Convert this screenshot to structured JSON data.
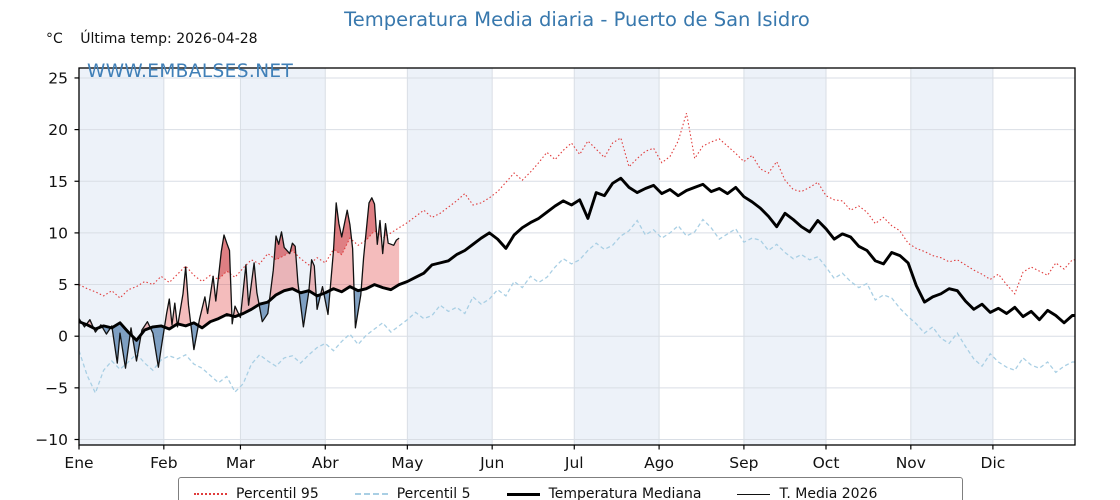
{
  "chart_data": {
    "type": "line",
    "title": "Temperatura Media diaria - Puerto de San Isidro",
    "unit_label": "°C",
    "last_temp_label": "Última temp: 2026-04-28",
    "watermark": "WWW.EMBALSES.NET",
    "months": [
      "Ene",
      "Feb",
      "Mar",
      "Abr",
      "May",
      "Jun",
      "Jul",
      "Ago",
      "Sep",
      "Oct",
      "Nov",
      "Dic"
    ],
    "month_start_days": [
      1,
      32,
      60,
      91,
      121,
      152,
      182,
      213,
      244,
      274,
      305,
      335
    ],
    "days_in_year": 365,
    "yticks": [
      25,
      20,
      15,
      10,
      5,
      0,
      -5,
      -10
    ],
    "ylim": [
      -10.5,
      26
    ],
    "grid": true,
    "legend_position": "bottom",
    "colors": {
      "p95": "#e03c3c",
      "p5": "#a9cfe4",
      "median": "#000000",
      "t2026": "#111111",
      "fill_above": "rgba(229,96,96,0.42)",
      "fill_below": "rgba(95,136,178,0.78)",
      "fill_above_p95": "rgba(190,30,40,0.38)",
      "band": "#edf2f9",
      "grid_line": "#d9dee5",
      "title": "#3878ad",
      "watermark": "#4080b8"
    },
    "series": [
      {
        "name": "Percentil 95",
        "style": "dotted",
        "color_key": "p95",
        "start_day": 1,
        "step_days": 3,
        "values": [
          5.0,
          4.6,
          4.3,
          3.9,
          4.4,
          3.7,
          4.5,
          4.8,
          5.3,
          5.0,
          5.8,
          5.2,
          6.0,
          6.8,
          5.9,
          5.3,
          5.9,
          5.5,
          6.3,
          5.7,
          6.6,
          7.4,
          7.0,
          8.0,
          7.4,
          7.8,
          8.3,
          7.5,
          6.9,
          7.6,
          7.1,
          8.4,
          7.9,
          9.5,
          8.8,
          9.3,
          10.2,
          9.5,
          10.0,
          10.5,
          11.0,
          11.6,
          12.2,
          11.5,
          11.9,
          12.5,
          13.1,
          13.8,
          12.7,
          12.9,
          13.4,
          14.0,
          14.9,
          15.8,
          15.1,
          15.9,
          16.8,
          17.8,
          17.1,
          18.0,
          18.7,
          17.6,
          18.9,
          18.1,
          17.3,
          18.7,
          19.2,
          16.4,
          17.2,
          17.9,
          18.2,
          16.8,
          17.4,
          18.9,
          21.6,
          17.2,
          18.4,
          18.8,
          19.1,
          18.4,
          17.7,
          16.9,
          17.5,
          16.2,
          15.8,
          16.9,
          15.1,
          14.2,
          14.0,
          14.4,
          14.9,
          13.6,
          13.2,
          13.1,
          12.2,
          12.6,
          12.0,
          10.9,
          11.5,
          10.7,
          10.2,
          9.0,
          8.5,
          8.2,
          7.8,
          7.6,
          7.2,
          7.4,
          6.9,
          6.4,
          6.0,
          5.5,
          6.0,
          5.0,
          4.1,
          6.2,
          6.7,
          6.3,
          5.9,
          7.1,
          6.5,
          7.4
        ]
      },
      {
        "name": "Percentil 5",
        "style": "dashed",
        "color_key": "p5",
        "start_day": 1,
        "step_days": 3,
        "values": [
          -1.4,
          -3.8,
          -5.5,
          -3.3,
          -2.4,
          -3.2,
          -2.5,
          -1.7,
          -2.6,
          -3.3,
          -2.3,
          -1.9,
          -2.2,
          -1.8,
          -2.7,
          -3.1,
          -3.8,
          -4.5,
          -3.9,
          -5.4,
          -4.6,
          -2.7,
          -1.8,
          -2.4,
          -2.9,
          -2.1,
          -1.9,
          -2.6,
          -1.8,
          -1.1,
          -0.7,
          -1.4,
          -0.5,
          0.2,
          -0.8,
          0.1,
          0.7,
          1.3,
          0.4,
          1.0,
          1.6,
          2.3,
          1.7,
          2.0,
          3.0,
          2.4,
          2.8,
          2.2,
          3.8,
          3.1,
          3.6,
          4.5,
          3.9,
          5.3,
          4.7,
          5.8,
          5.2,
          5.7,
          6.7,
          7.5,
          7.0,
          7.4,
          8.3,
          9.0,
          8.4,
          8.8,
          9.7,
          10.2,
          11.2,
          9.8,
          10.3,
          9.5,
          10.0,
          10.7,
          9.7,
          10.1,
          11.3,
          10.5,
          9.4,
          9.9,
          10.4,
          9.1,
          9.5,
          9.3,
          8.3,
          8.9,
          8.1,
          7.5,
          7.9,
          7.4,
          7.7,
          6.7,
          5.6,
          6.1,
          5.3,
          4.7,
          5.1,
          3.5,
          4.0,
          3.7,
          2.7,
          1.9,
          1.2,
          0.3,
          0.9,
          -0.2,
          -0.7,
          0.3,
          -1.0,
          -2.2,
          -2.9,
          -1.7,
          -2.5,
          -3.0,
          -3.3,
          -2.1,
          -2.8,
          -3.1,
          -2.5,
          -3.5,
          -2.9,
          -2.5
        ]
      },
      {
        "name": "Temperatura Mediana",
        "style": "solid-thick",
        "color_key": "median",
        "start_day": 1,
        "step_days": 3,
        "values": [
          1.4,
          1.1,
          0.7,
          1.0,
          0.8,
          1.3,
          0.4,
          -0.4,
          0.6,
          0.9,
          1.0,
          0.7,
          1.2,
          1.0,
          1.3,
          0.8,
          1.4,
          1.7,
          2.1,
          1.9,
          2.2,
          2.6,
          3.1,
          3.3,
          4.0,
          4.4,
          4.6,
          4.2,
          4.4,
          3.9,
          4.2,
          4.6,
          4.3,
          4.8,
          4.4,
          4.6,
          5.0,
          4.7,
          4.5,
          5.0,
          5.3,
          5.7,
          6.1,
          6.9,
          7.1,
          7.3,
          7.9,
          8.3,
          8.9,
          9.5,
          10.0,
          9.4,
          8.5,
          9.8,
          10.5,
          11.0,
          11.4,
          12.0,
          12.6,
          13.1,
          12.7,
          13.2,
          11.4,
          13.9,
          13.6,
          14.8,
          15.3,
          14.4,
          13.9,
          14.3,
          14.6,
          13.8,
          14.2,
          13.6,
          14.1,
          14.4,
          14.7,
          14.0,
          14.3,
          13.8,
          14.4,
          13.5,
          13.0,
          12.4,
          11.6,
          10.6,
          11.9,
          11.3,
          10.6,
          10.1,
          11.2,
          10.4,
          9.4,
          9.9,
          9.6,
          8.7,
          8.3,
          7.3,
          7.0,
          8.1,
          7.8,
          7.1,
          4.9,
          3.3,
          3.8,
          4.1,
          4.6,
          4.4,
          3.4,
          2.6,
          3.1,
          2.3,
          2.7,
          2.2,
          2.8,
          1.9,
          2.4,
          1.6,
          2.5,
          2.0,
          1.3,
          2.0
        ]
      },
      {
        "name": "T. Media 2026",
        "style": "solid-thin",
        "color_key": "t2026",
        "points": [
          [
            1,
            1.7
          ],
          [
            3,
            0.9
          ],
          [
            5,
            1.6
          ],
          [
            7,
            0.4
          ],
          [
            9,
            1.1
          ],
          [
            11,
            0.2
          ],
          [
            13,
            1.0
          ],
          [
            15,
            -2.6
          ],
          [
            16,
            0.3
          ],
          [
            18,
            -3.1
          ],
          [
            20,
            0.8
          ],
          [
            22,
            -2.4
          ],
          [
            24,
            0.6
          ],
          [
            26,
            1.4
          ],
          [
            28,
            0.3
          ],
          [
            30,
            -3.0
          ],
          [
            31,
            -1.2
          ],
          [
            33,
            2.2
          ],
          [
            34,
            3.6
          ],
          [
            35,
            1.1
          ],
          [
            36,
            3.2
          ],
          [
            37,
            0.9
          ],
          [
            39,
            4.1
          ],
          [
            40,
            6.7
          ],
          [
            41,
            3.0
          ],
          [
            43,
            -1.3
          ],
          [
            45,
            1.6
          ],
          [
            47,
            3.8
          ],
          [
            48,
            2.2
          ],
          [
            50,
            5.8
          ],
          [
            51,
            3.4
          ],
          [
            53,
            8.2
          ],
          [
            54,
            9.8
          ],
          [
            55,
            9.0
          ],
          [
            56,
            8.3
          ],
          [
            57,
            1.2
          ],
          [
            58,
            2.9
          ],
          [
            60,
            1.8
          ],
          [
            62,
            6.9
          ],
          [
            63,
            3.0
          ],
          [
            65,
            7.1
          ],
          [
            66,
            4.2
          ],
          [
            68,
            1.4
          ],
          [
            70,
            2.2
          ],
          [
            72,
            6.4
          ],
          [
            73,
            9.7
          ],
          [
            74,
            8.9
          ],
          [
            75,
            10.1
          ],
          [
            76,
            8.6
          ],
          [
            78,
            8.0
          ],
          [
            79,
            9.0
          ],
          [
            80,
            8.7
          ],
          [
            81,
            5.2
          ],
          [
            83,
            0.9
          ],
          [
            85,
            4.3
          ],
          [
            86,
            7.4
          ],
          [
            87,
            6.8
          ],
          [
            88,
            2.6
          ],
          [
            90,
            4.8
          ],
          [
            92,
            2.1
          ],
          [
            94,
            8.3
          ],
          [
            95,
            12.9
          ],
          [
            96,
            10.9
          ],
          [
            97,
            9.6
          ],
          [
            99,
            12.2
          ],
          [
            100,
            10.8
          ],
          [
            101,
            8.5
          ],
          [
            102,
            0.8
          ],
          [
            104,
            4.0
          ],
          [
            105,
            7.6
          ],
          [
            107,
            12.9
          ],
          [
            108,
            13.4
          ],
          [
            109,
            12.8
          ],
          [
            110,
            8.9
          ],
          [
            111,
            11.2
          ],
          [
            112,
            8.0
          ],
          [
            113,
            10.9
          ],
          [
            114,
            9.0
          ],
          [
            116,
            8.8
          ],
          [
            117,
            9.3
          ],
          [
            118,
            9.5
          ]
        ]
      }
    ],
    "legend": [
      {
        "label": "Percentil 95"
      },
      {
        "label": "Percentil 5"
      },
      {
        "label": "Temperatura Mediana"
      },
      {
        "label": "T. Media 2026"
      }
    ]
  }
}
